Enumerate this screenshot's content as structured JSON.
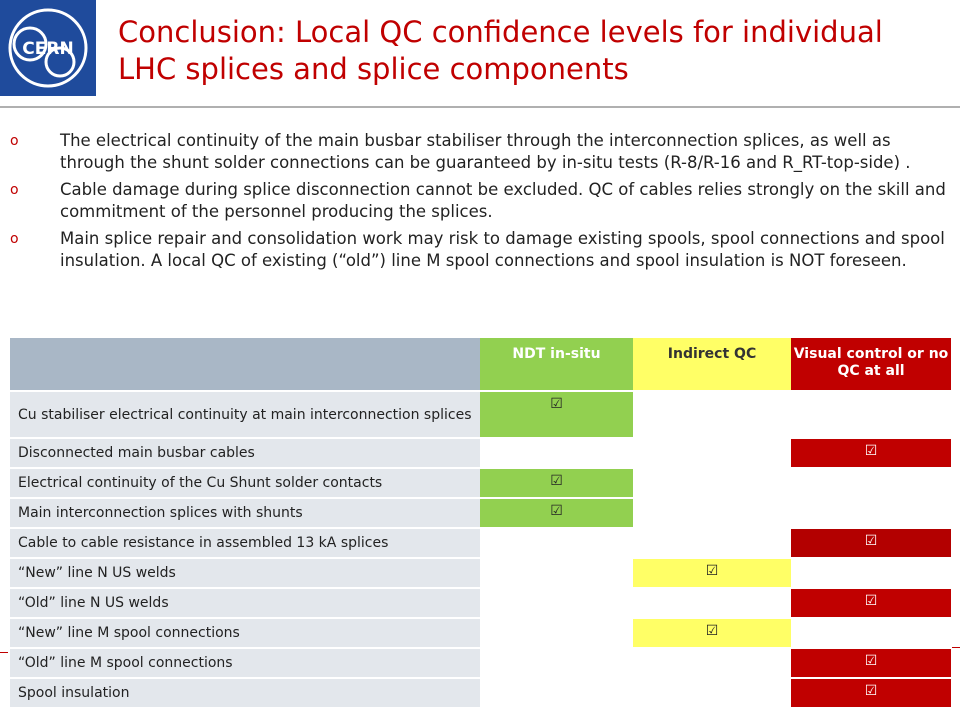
{
  "logo": {
    "text": "CERN"
  },
  "title": "Conclusion: Local QC confidence levels for individual LHC splices and splice components",
  "bullets": [
    "The electrical continuity of the main busbar stabiliser through the interconnection splices, as well as through the shunt solder connections can be guaranteed by in-situ tests (R-8/R-16 and R_RT-top-side) .",
    "Cable damage during splice disconnection cannot be excluded. QC of cables relies strongly on the skill and commitment of the personnel producing the splices.",
    "Main splice repair and consolidation work may risk to damage existing spools, spool connections and spool insulation. A local QC of existing (“old”) line M spool connections and spool insulation is NOT foreseen."
  ],
  "bullet_marker": "o",
  "table": {
    "headers": [
      "",
      "NDT in-situ",
      "Indirect  QC",
      "Visual control or no QC at all"
    ],
    "check": "☑",
    "rows": [
      {
        "label": "Cu stabiliser electrical continuity at main interconnection splices",
        "level": "ndt"
      },
      {
        "label": "Disconnected main busbar cables",
        "level": "visual"
      },
      {
        "label": "Electrical continuity of the Cu Shunt solder contacts",
        "level": "ndt"
      },
      {
        "label": "Main interconnection splices with shunts",
        "level": "ndt"
      },
      {
        "label": "Cable to cable resistance in assembled 13 kA splices",
        "level": "visual"
      },
      {
        "label": "“New” line N US welds",
        "level": "indirect"
      },
      {
        "label": "“Old” line N US welds",
        "level": "visual"
      },
      {
        "label": "“New” line M spool connections",
        "level": "indirect"
      },
      {
        "label": "“Old” line M spool connections",
        "level": "visual"
      },
      {
        "label": "Spool insulation",
        "level": "visual"
      }
    ]
  },
  "colors": {
    "title": "#c00000",
    "ndt": "#92d050",
    "indirect": "#ffff66",
    "visual": "#c00000",
    "label_bg": "#e3e7ec",
    "header_blank": "#a9b7c6"
  }
}
